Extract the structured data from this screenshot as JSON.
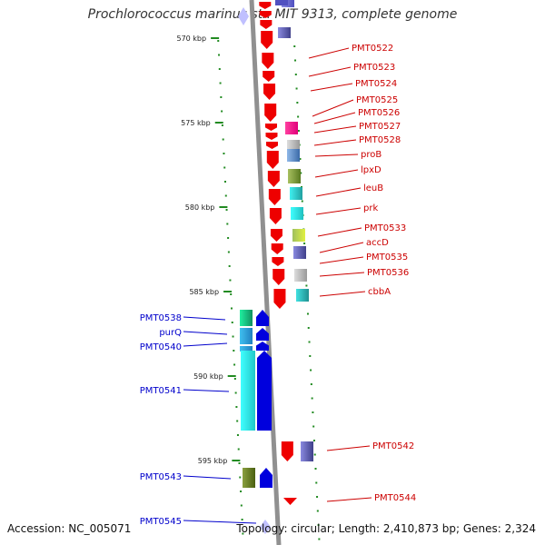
{
  "title": "Prochlorococcus marinus str. MIT 9313, complete genome",
  "footer": {
    "accession": "Accession: NC_005071",
    "topology": "Topology: circular; Length: 2,410,873 bp; Genes: 2,324"
  },
  "colors": {
    "backbone": "#909090",
    "forward_strand": "#ee0000",
    "reverse_strand": "#0000dd",
    "forward_label": "#cc0000",
    "reverse_label": "#0000cc",
    "dots": "#228b22"
  },
  "ticks": [
    "570 kbp",
    "575 kbp",
    "580 kbp",
    "585 kbp",
    "590 kbp",
    "595 kbp"
  ],
  "right_genes": [
    "PMT0522",
    "PMT0523",
    "PMT0524",
    "PMT0525",
    "PMT0526",
    "PMT0527",
    "PMT0528",
    "proB",
    "lpxD",
    "leuB",
    "prk",
    "PMT0533",
    "accD",
    "PMT0535",
    "PMT0536",
    "cbbA",
    "PMT0542",
    "PMT0544"
  ],
  "left_genes": [
    "PMT0538",
    "purQ",
    "PMT0540",
    "PMT0541",
    "PMT0543",
    "PMT0545"
  ]
}
